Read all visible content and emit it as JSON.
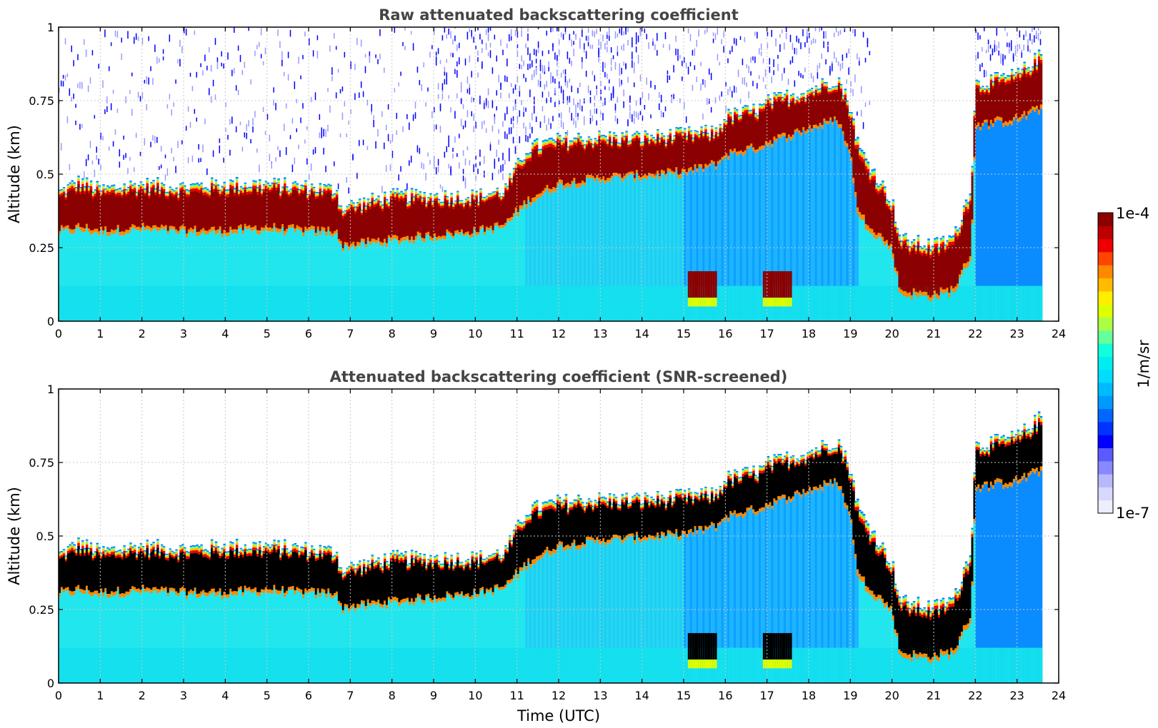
{
  "chart_data": [
    {
      "type": "heatmap",
      "title": "Raw attenuated backscattering coefficient",
      "ylabel": "Altitude (km)",
      "xlabel": "",
      "xlim": [
        0,
        24
      ],
      "ylim": [
        0,
        1
      ],
      "xticks": [
        "0",
        "1",
        "2",
        "3",
        "4",
        "5",
        "6",
        "7",
        "8",
        "9",
        "10",
        "11",
        "12",
        "13",
        "14",
        "15",
        "16",
        "17",
        "18",
        "19",
        "20",
        "21",
        "22",
        "23",
        "24"
      ],
      "yticks": [
        "0",
        "0.25",
        "0.5",
        "0.75",
        "1"
      ],
      "grid": true,
      "data_end_hour": 23.6,
      "peak_color": "#8b0000",
      "layer_top_km": {
        "x": [
          0,
          0.5,
          1,
          2,
          3,
          4,
          5,
          6,
          6.7,
          6.75,
          8,
          10,
          10.7,
          11.25,
          12,
          13,
          14,
          15,
          15.8,
          16,
          16.9,
          17,
          18,
          18.7,
          19,
          19.2,
          20,
          20.2,
          21,
          21.5,
          21.9,
          22,
          23,
          23.6
        ],
        "y": [
          0.43,
          0.47,
          0.44,
          0.46,
          0.45,
          0.46,
          0.46,
          0.45,
          0.44,
          0.38,
          0.42,
          0.42,
          0.44,
          0.58,
          0.61,
          0.62,
          0.62,
          0.63,
          0.64,
          0.69,
          0.72,
          0.74,
          0.78,
          0.82,
          0.72,
          0.58,
          0.4,
          0.27,
          0.25,
          0.28,
          0.45,
          0.8,
          0.83,
          0.9
        ]
      },
      "layer_base_km": {
        "x": [
          0,
          0.5,
          1,
          2,
          3,
          4,
          5,
          6,
          6.7,
          6.75,
          8,
          10,
          10.7,
          11.25,
          12,
          13,
          14,
          15,
          15.8,
          16,
          16.9,
          17,
          18,
          18.7,
          19,
          19.2,
          20,
          20.2,
          21,
          21.5,
          21.9,
          22,
          23,
          23.6
        ],
        "y": [
          0.3,
          0.31,
          0.3,
          0.31,
          0.3,
          0.3,
          0.31,
          0.3,
          0.3,
          0.25,
          0.27,
          0.3,
          0.32,
          0.4,
          0.46,
          0.48,
          0.49,
          0.5,
          0.53,
          0.56,
          0.59,
          0.6,
          0.65,
          0.68,
          0.56,
          0.35,
          0.24,
          0.09,
          0.08,
          0.1,
          0.22,
          0.66,
          0.68,
          0.72
        ]
      }
    },
    {
      "type": "heatmap",
      "title": "Attenuated backscattering coefficient (SNR-screened)",
      "ylabel": "Altitude (km)",
      "xlabel": "Time (UTC)",
      "xlim": [
        0,
        24
      ],
      "ylim": [
        0,
        1
      ],
      "xticks": [
        "0",
        "1",
        "2",
        "3",
        "4",
        "5",
        "6",
        "7",
        "8",
        "9",
        "10",
        "11",
        "12",
        "13",
        "14",
        "15",
        "16",
        "17",
        "18",
        "19",
        "20",
        "21",
        "22",
        "23",
        "24"
      ],
      "yticks": [
        "0",
        "0.25",
        "0.5",
        "0.75",
        "1"
      ],
      "grid": true,
      "data_end_hour": 23.6,
      "peak_color": "#000000",
      "screened": true
    }
  ],
  "colorbar": {
    "label": "1/m/sr",
    "max_label": "1e-4",
    "min_label": "1e-7",
    "colors": [
      "#eeeeff",
      "#d8d8ff",
      "#b8b8ff",
      "#8888ff",
      "#5a5aff",
      "#0000ff",
      "#0033ff",
      "#0066ff",
      "#0099ff",
      "#00bbff",
      "#00ddff",
      "#00eeee",
      "#11ffdd",
      "#66ff99",
      "#aaff44",
      "#ddff00",
      "#ffee00",
      "#ffbb00",
      "#ff8800",
      "#ff4400",
      "#ee0000",
      "#bb0000",
      "#8b0000"
    ]
  }
}
